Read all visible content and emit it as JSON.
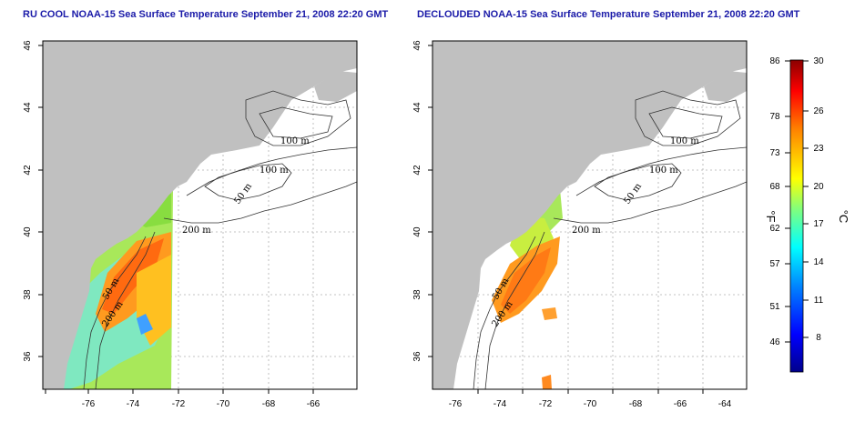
{
  "panels": [
    {
      "title": "RU COOL NOAA-15 Sea Surface Temperature September 21, 2008 22:20 GMT",
      "contour_labels": [
        "100 m",
        "100 m",
        "50 m",
        "200 m",
        "50 m",
        "200 m"
      ]
    },
    {
      "title": "DECLOUDED NOAA-15 Sea Surface Temperature September 21, 2008 22:20 GMT",
      "contour_labels": [
        "100 m",
        "100 m",
        "50 m",
        "200 m",
        "50 m",
        "200 m"
      ]
    }
  ],
  "axes": {
    "lon_ticks": [
      "-76",
      "-74",
      "-72",
      "-70",
      "-68",
      "-66",
      "-64"
    ],
    "lat_ticks": [
      "46",
      "44",
      "42",
      "40",
      "38",
      "36"
    ]
  },
  "colorbar": {
    "celsius_ticks": [
      "30",
      "26",
      "23",
      "20",
      "17",
      "14",
      "11",
      "8"
    ],
    "fahrenheit_ticks": [
      "86",
      "78",
      "73",
      "68",
      "62",
      "57",
      "51",
      "46"
    ],
    "celsius_unit": "°C",
    "fahrenheit_unit": "°F",
    "range_celsius": [
      5,
      30
    ],
    "colors": [
      "#00008b",
      "#0000ff",
      "#0080ff",
      "#00ffff",
      "#7fff7f",
      "#ffff00",
      "#ff8000",
      "#ff0000",
      "#8b0000"
    ]
  },
  "colors": {
    "land": "#c0c0c0",
    "ocean": "#ffffff",
    "title": "#1a1aa8",
    "grid": "#b0b0b0"
  }
}
